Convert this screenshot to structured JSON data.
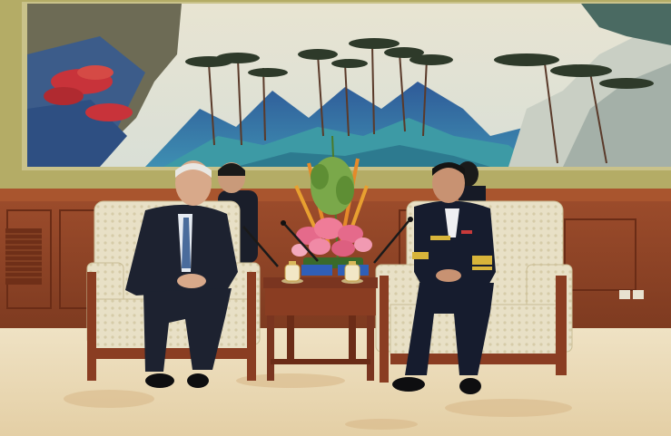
{
  "scene": {
    "description_free": true,
    "name_card_left": "",
    "name_card_right": ""
  },
  "colors": {
    "frame": "#a9a35a",
    "sky": "#e9e7d9",
    "mountain_blue": "#3a6aa6",
    "mountain_teal": "#3c9fa8",
    "wood": "#8a3d22",
    "wood_dark": "#6b2c17",
    "wall_panel": "#9a4a2a",
    "carpet": "#e9d9ba",
    "chair_fabric": "#e7dfc4",
    "suit_dark": "#1d2230",
    "navy_uniform": "#161c2e",
    "gold_stripe": "#d8b43a",
    "flower_pink": "#e56a8b",
    "flower_orange": "#e58a2a",
    "name_card_blue": "#2f5fb8"
  }
}
